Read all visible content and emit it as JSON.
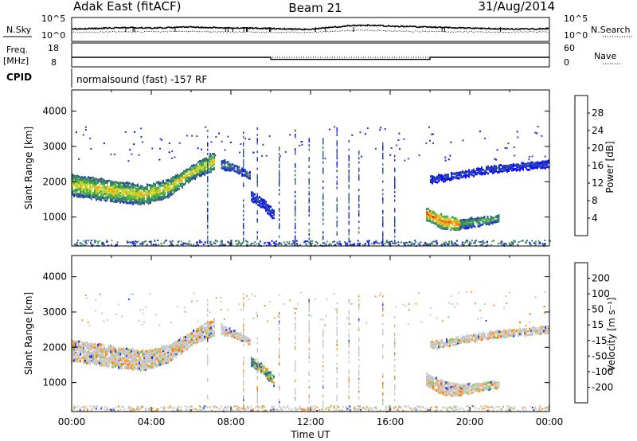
{
  "header": {
    "radar": "Adak East (fitACF)",
    "beam": "Beam 21",
    "date": "31/Aug/2014"
  },
  "chart_data": [
    {
      "type": "line",
      "panel": "noise",
      "ylabel_left": "N.Sky",
      "ylabel_right": "N.Search",
      "left_ticks": [
        "10^5",
        "10^0"
      ],
      "right_ticks": [
        "10^5",
        "10^0"
      ],
      "series": [
        {
          "values": [
            2.6,
            2.7,
            2.8,
            2.9,
            2.8,
            2.9,
            3.0,
            2.9,
            2.8,
            2.8,
            2.7,
            2.6,
            2.5,
            2.9,
            3.3,
            3.4,
            3.2,
            3.1,
            3.0,
            2.9,
            2.8,
            2.7,
            2.6,
            2.6,
            2.7
          ]
        },
        {
          "values": [
            1.9,
            1.9,
            2.0,
            2.0,
            2.0,
            2.1,
            2.1,
            2.0,
            2.0,
            1.9,
            1.9,
            1.9,
            1.9,
            2.1,
            2.3,
            2.3,
            2.2,
            2.1,
            2.1,
            2.0,
            2.0,
            1.9,
            1.9,
            2.0,
            2.0
          ]
        }
      ]
    },
    {
      "type": "line",
      "panel": "frequency",
      "ylabel_left": "Freq.",
      "ylabel_left_unit": "[MHz]",
      "ylabel_right": "Nave",
      "left_ticks": [
        "18",
        "8"
      ],
      "right_ticks": [
        "60",
        "0"
      ],
      "series": [
        {
          "x_hours": [
            0,
            10,
            10,
            18,
            18,
            24
          ],
          "values": [
            11.6,
            11.6,
            10.4,
            10.4,
            11.6,
            11.6
          ]
        },
        {
          "x_hours": [
            0,
            24
          ],
          "values": [
            24,
            24
          ]
        }
      ]
    },
    {
      "type": "table",
      "panel": "cpid",
      "label": "CPID",
      "program": "normalsound (fast) -157 RF"
    },
    {
      "type": "heatmap",
      "panel": "power",
      "ylabel": "Slant Range [km]",
      "yticks": [
        1000,
        2000,
        3000,
        4000
      ],
      "ylim": [
        180,
        4600
      ],
      "xlim_hours": [
        0,
        24
      ],
      "colorbar_label": "Power [dB]",
      "colorbar_ticks": [
        "28",
        "24",
        "20",
        "16",
        "12",
        "8",
        "4"
      ],
      "colorbar_colors": [
        "#1010ff",
        "#2840b8",
        "#3a7c6a",
        "#46b040",
        "#c8d230",
        "#ffa000",
        "#ff5000",
        "#ff1010"
      ],
      "bands": [
        {
          "t0": 0,
          "t1": 7.2,
          "r0": [
            1650,
            1550,
            1450,
            1400,
            1600,
            2100,
            2400
          ],
          "r1": [
            2250,
            2150,
            2050,
            1950,
            2100,
            2500,
            2900
          ],
          "peak": 20
        },
        {
          "t0": 7.5,
          "t1": 9.0,
          "r0": [
            2400,
            2300,
            2100
          ],
          "r1": [
            2700,
            2500,
            2300
          ],
          "peak": 10
        },
        {
          "t0": 9.0,
          "t1": 10.2,
          "r0": [
            1500,
            1300,
            900
          ],
          "r1": [
            1750,
            1550,
            1200
          ],
          "peak": 6
        },
        {
          "t0": 17.8,
          "t1": 19.5,
          "r0": [
            950,
            700,
            650
          ],
          "r1": [
            1300,
            1100,
            1000
          ],
          "peak": 26
        },
        {
          "t0": 19.5,
          "t1": 21.5,
          "r0": [
            700,
            900
          ],
          "r1": [
            1000,
            1100
          ],
          "peak": 14
        },
        {
          "t0": 18.0,
          "t1": 24.0,
          "r0": [
            2000,
            2300,
            2450
          ],
          "r1": [
            2200,
            2500,
            2650
          ],
          "peak": 6
        }
      ]
    },
    {
      "type": "heatmap",
      "panel": "velocity",
      "ylabel": "Slant Range [km]",
      "yticks": [
        1000,
        2000,
        3000,
        4000
      ],
      "ylim": [
        180,
        4600
      ],
      "xlim_hours": [
        0,
        24
      ],
      "xticks": [
        "00:00",
        "04:00",
        "08:00",
        "12:00",
        "16:00",
        "20:00",
        "00:00"
      ],
      "xlabel": "Time UT",
      "colorbar_label": "Velocity [m s⁻¹]",
      "colorbar_ticks": [
        "200",
        "100",
        "50",
        "15",
        "-15",
        "-50",
        "-100",
        "-200"
      ],
      "colorbar_colors": [
        "#1f3cff",
        "#2a6fa0",
        "#3b9a52",
        "#7ad24a",
        "#c8c8c8",
        "#ff9a20",
        "#ff6a00",
        "#ff3010",
        "#ff0000"
      ]
    }
  ]
}
